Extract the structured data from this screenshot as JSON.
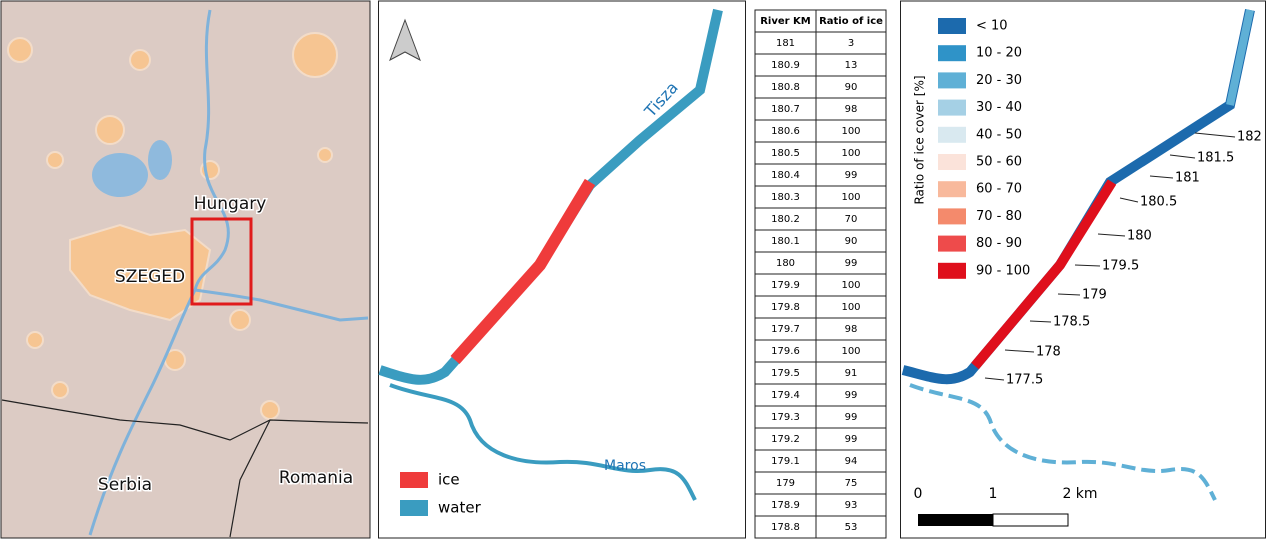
{
  "map_panel": {
    "country_labels": [
      "Hungary",
      "Serbia",
      "Romania"
    ],
    "city_label": "SZEGED"
  },
  "ice_panel": {
    "river_labels": [
      "Tisza",
      "Maros"
    ],
    "legend": [
      {
        "label": "ice",
        "color": "#ef3b3b"
      },
      {
        "label": "water",
        "color": "#3a9cc0"
      }
    ]
  },
  "table": {
    "header": [
      "River KM",
      "Ratio of ice"
    ],
    "rows": [
      [
        181,
        3
      ],
      [
        180.9,
        13
      ],
      [
        180.8,
        90
      ],
      [
        180.7,
        98
      ],
      [
        180.6,
        100
      ],
      [
        180.5,
        100
      ],
      [
        180.4,
        99
      ],
      [
        180.3,
        100
      ],
      [
        180.2,
        70
      ],
      [
        180.1,
        90
      ],
      [
        180,
        99
      ],
      [
        179.9,
        100
      ],
      [
        179.8,
        100
      ],
      [
        179.7,
        98
      ],
      [
        179.6,
        100
      ],
      [
        179.5,
        91
      ],
      [
        179.4,
        99
      ],
      [
        179.3,
        99
      ],
      [
        179.2,
        99
      ],
      [
        179.1,
        94
      ],
      [
        179,
        75
      ],
      [
        178.9,
        93
      ],
      [
        178.8,
        53
      ]
    ]
  },
  "ratio_panel": {
    "legend_title": "Ratio of ice cover [%]",
    "legend": [
      {
        "label": "< 10",
        "color": "#1c6aad"
      },
      {
        "label": "10 - 20",
        "color": "#2f93c8"
      },
      {
        "label": "20 - 30",
        "color": "#5fb0d6"
      },
      {
        "label": "30 - 40",
        "color": "#a5d0e5"
      },
      {
        "label": "40 - 50",
        "color": "#d9e9f0"
      },
      {
        "label": "50 - 60",
        "color": "#fbe3da"
      },
      {
        "label": "60 - 70",
        "color": "#f8b99c"
      },
      {
        "label": "70 - 80",
        "color": "#f48a6c"
      },
      {
        "label": "80 - 90",
        "color": "#ee4b4b"
      },
      {
        "label": "90 - 100",
        "color": "#df0f1c"
      }
    ],
    "km_labels": [
      "182",
      "181.5",
      "181",
      "180.5",
      "180",
      "179.5",
      "179",
      "178.5",
      "178",
      "177.5"
    ],
    "scale_labels": [
      "0",
      "1",
      "2 km"
    ]
  }
}
